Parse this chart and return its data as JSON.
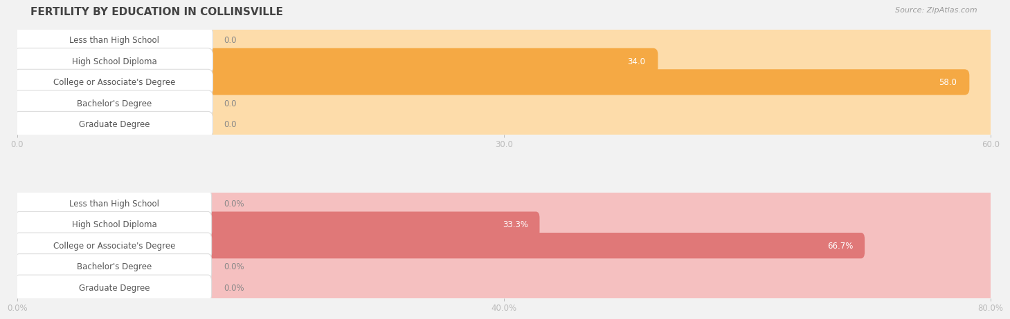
{
  "title": "FERTILITY BY EDUCATION IN COLLINSVILLE",
  "source": "Source: ZipAtlas.com",
  "top_chart": {
    "categories": [
      "Less than High School",
      "High School Diploma",
      "College or Associate's Degree",
      "Bachelor's Degree",
      "Graduate Degree"
    ],
    "values": [
      0.0,
      34.0,
      58.0,
      0.0,
      0.0
    ],
    "max_value": 60.0,
    "xticks": [
      0.0,
      30.0,
      60.0
    ],
    "xtick_labels": [
      "0.0",
      "30.0",
      "60.0"
    ],
    "bar_color": "#F5A944",
    "bar_bg_color": "#FDDCAA",
    "value_labels": [
      "0.0",
      "34.0",
      "58.0",
      "0.0",
      "0.0"
    ]
  },
  "bottom_chart": {
    "categories": [
      "Less than High School",
      "High School Diploma",
      "College or Associate's Degree",
      "Bachelor's Degree",
      "Graduate Degree"
    ],
    "values": [
      0.0,
      33.3,
      66.7,
      0.0,
      0.0
    ],
    "max_value": 80.0,
    "xticks": [
      0.0,
      40.0,
      80.0
    ],
    "xtick_labels": [
      "0.0%",
      "40.0%",
      "80.0%"
    ],
    "bar_color": "#E07878",
    "bar_bg_color": "#F5C0C0",
    "value_labels": [
      "0.0%",
      "33.3%",
      "66.7%",
      "0.0%",
      "0.0%"
    ]
  },
  "bg_color": "#F2F2F2",
  "row_bg_even": "#EEEEEE",
  "row_bg_odd": "#E6E6E6",
  "title_fontsize": 11,
  "label_fontsize": 8.5,
  "tick_fontsize": 8.5,
  "source_fontsize": 8
}
